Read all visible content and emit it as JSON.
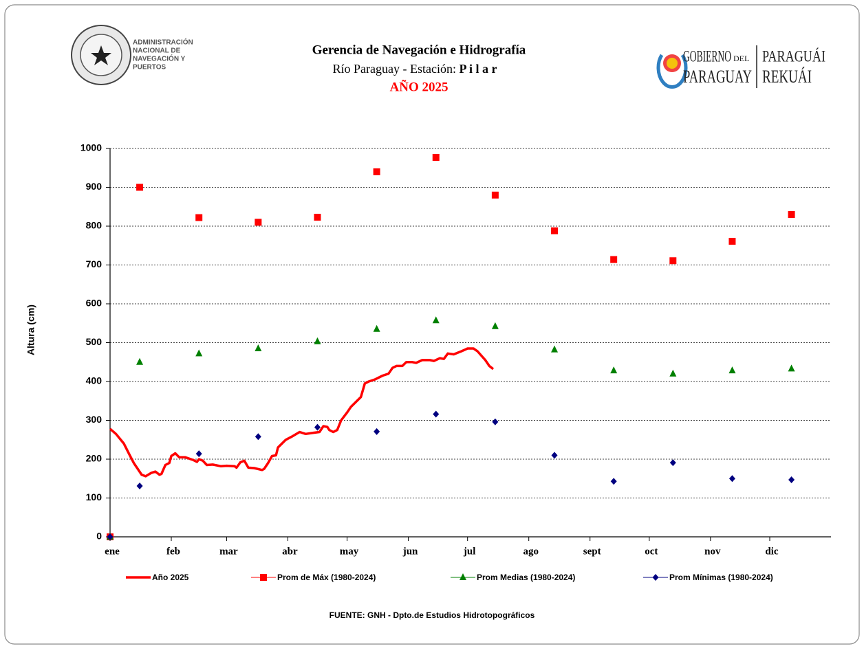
{
  "header": {
    "title": "Gerencia de Navegación e Hidrografía",
    "subtitle": "Río Paraguay  -  Estación:",
    "station": "P i l a r",
    "year": "AÑO  2025"
  },
  "logos": {
    "annp": [
      "ADMINISTRACIÓN",
      "NACIONAL DE",
      "NAVEGACIÓN Y",
      "PUERTOS"
    ],
    "gov": [
      "GOBIERNO",
      "DEL",
      "PARAGUAY",
      "PARAGUÁI",
      "REKUÁI"
    ]
  },
  "chart_data": {
    "type": "line",
    "ylabel": "Altura (cm)",
    "ylim": [
      0,
      1000
    ],
    "yticks": [
      0,
      100,
      200,
      300,
      400,
      500,
      600,
      700,
      800,
      900,
      1000
    ],
    "xlim": [
      0,
      365
    ],
    "xticks": [
      {
        "value": 0,
        "label": "ene"
      },
      {
        "value": 31,
        "label": "feb"
      },
      {
        "value": 59,
        "label": "mar"
      },
      {
        "value": 90,
        "label": "abr"
      },
      {
        "value": 120,
        "label": "may"
      },
      {
        "value": 151,
        "label": "jun"
      },
      {
        "value": 181,
        "label": "jul"
      },
      {
        "value": 212,
        "label": "ago"
      },
      {
        "value": 243,
        "label": "sept"
      },
      {
        "value": 273,
        "label": "oct"
      },
      {
        "value": 304,
        "label": "nov"
      },
      {
        "value": 334,
        "label": "dic"
      }
    ],
    "grid": true,
    "legend": "bottom",
    "series": [
      {
        "name": "Año 2025",
        "color": "#ff0000",
        "style": "line",
        "x": [
          0,
          3,
          7,
          10,
          12,
          14,
          16,
          18,
          21,
          23,
          25,
          26,
          28,
          30,
          31,
          33,
          35,
          38,
          42,
          44,
          45,
          47,
          49,
          52,
          56,
          59,
          63,
          64,
          66,
          68,
          70,
          73,
          77,
          78,
          80,
          82,
          84,
          85,
          89,
          92,
          96,
          99,
          103,
          106,
          108,
          110,
          111,
          113,
          115,
          117,
          120,
          122,
          125,
          127,
          129,
          131,
          134,
          138,
          141,
          143,
          145,
          148,
          150,
          153,
          155,
          158,
          162,
          164,
          167,
          169,
          171,
          174,
          178,
          181,
          184,
          186,
          190,
          192,
          194
        ],
        "values": [
          278,
          265,
          240,
          210,
          190,
          175,
          160,
          156,
          165,
          168,
          160,
          162,
          185,
          190,
          208,
          215,
          205,
          205,
          198,
          193,
          200,
          196,
          185,
          186,
          182,
          183,
          182,
          178,
          192,
          196,
          178,
          177,
          172,
          175,
          190,
          208,
          210,
          230,
          250,
          258,
          270,
          265,
          268,
          270,
          285,
          283,
          275,
          270,
          275,
          300,
          320,
          335,
          350,
          360,
          395,
          400,
          405,
          415,
          420,
          435,
          440,
          440,
          450,
          450,
          448,
          455,
          455,
          453,
          460,
          458,
          472,
          470,
          478,
          485,
          485,
          478,
          455,
          440,
          432
        ]
      },
      {
        "name": "Prom de Máx (1980-2024)",
        "color": "#ff0000",
        "style": "square",
        "x": [
          0,
          15,
          45,
          75,
          105,
          135,
          165,
          195,
          225,
          255,
          285,
          315,
          345
        ],
        "values": [
          0,
          900,
          822,
          810,
          823,
          940,
          977,
          880,
          788,
          714,
          711,
          761,
          830
        ]
      },
      {
        "name": "Prom Medias (1980-2024)",
        "color": "#008000",
        "style": "triangle",
        "x": [
          0,
          15,
          45,
          75,
          105,
          135,
          165,
          195,
          225,
          255,
          285,
          315,
          345
        ],
        "values": [
          0,
          450,
          472,
          485,
          503,
          535,
          557,
          542,
          482,
          428,
          420,
          428,
          433
        ]
      },
      {
        "name": "Prom Mínimas (1980-2024)",
        "color": "#000080",
        "style": "diamond",
        "x": [
          0,
          15,
          45,
          75,
          105,
          135,
          165,
          195,
          225,
          255,
          285,
          315,
          345
        ],
        "values": [
          0,
          131,
          214,
          258,
          282,
          271,
          316,
          296,
          210,
          143,
          191,
          150,
          147
        ]
      }
    ]
  },
  "footer": {
    "source": "FUENTE: GNH - Dpto.de Estudios Hidrotopográficos"
  }
}
